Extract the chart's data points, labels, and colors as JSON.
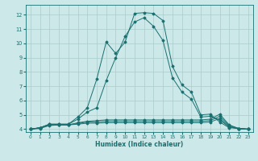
{
  "xlabel": "Humidex (Indice chaleur)",
  "bg_color": "#cce8e8",
  "grid_color": "#aacccc",
  "line_color": "#1a7070",
  "xlim": [
    -0.5,
    23.5
  ],
  "ylim": [
    3.8,
    12.7
  ],
  "xticks": [
    0,
    1,
    2,
    3,
    4,
    5,
    6,
    7,
    8,
    9,
    10,
    11,
    12,
    13,
    14,
    15,
    16,
    17,
    18,
    19,
    20,
    21,
    22,
    23
  ],
  "yticks": [
    4,
    5,
    6,
    7,
    8,
    9,
    10,
    11,
    12
  ],
  "curve1": [
    4.0,
    4.1,
    4.35,
    4.35,
    4.35,
    4.85,
    5.5,
    7.5,
    10.1,
    9.3,
    10.1,
    12.1,
    12.15,
    12.1,
    11.6,
    8.4,
    7.1,
    6.6,
    5.0,
    5.05,
    4.5,
    4.1,
    4.05,
    4.0
  ],
  "curve2": [
    4.0,
    4.1,
    4.35,
    4.35,
    4.35,
    4.7,
    5.2,
    5.5,
    7.4,
    9.0,
    10.5,
    11.5,
    11.8,
    11.2,
    10.2,
    7.6,
    6.6,
    6.1,
    4.85,
    4.9,
    4.65,
    4.15,
    4.05,
    4.0
  ],
  "curve3": [
    4.0,
    4.1,
    4.3,
    4.3,
    4.3,
    4.45,
    4.55,
    4.6,
    4.65,
    4.65,
    4.65,
    4.65,
    4.65,
    4.65,
    4.65,
    4.65,
    4.65,
    4.65,
    4.65,
    4.7,
    5.05,
    4.3,
    4.05,
    4.0
  ],
  "curve4": [
    4.0,
    4.1,
    4.3,
    4.3,
    4.3,
    4.4,
    4.5,
    4.5,
    4.55,
    4.55,
    4.55,
    4.55,
    4.55,
    4.55,
    4.55,
    4.55,
    4.55,
    4.55,
    4.55,
    4.6,
    4.9,
    4.25,
    4.05,
    4.0
  ],
  "curve5": [
    4.0,
    4.05,
    4.25,
    4.3,
    4.3,
    4.35,
    4.42,
    4.42,
    4.45,
    4.45,
    4.45,
    4.45,
    4.45,
    4.45,
    4.45,
    4.45,
    4.45,
    4.45,
    4.45,
    4.5,
    4.75,
    4.18,
    4.02,
    4.0
  ]
}
